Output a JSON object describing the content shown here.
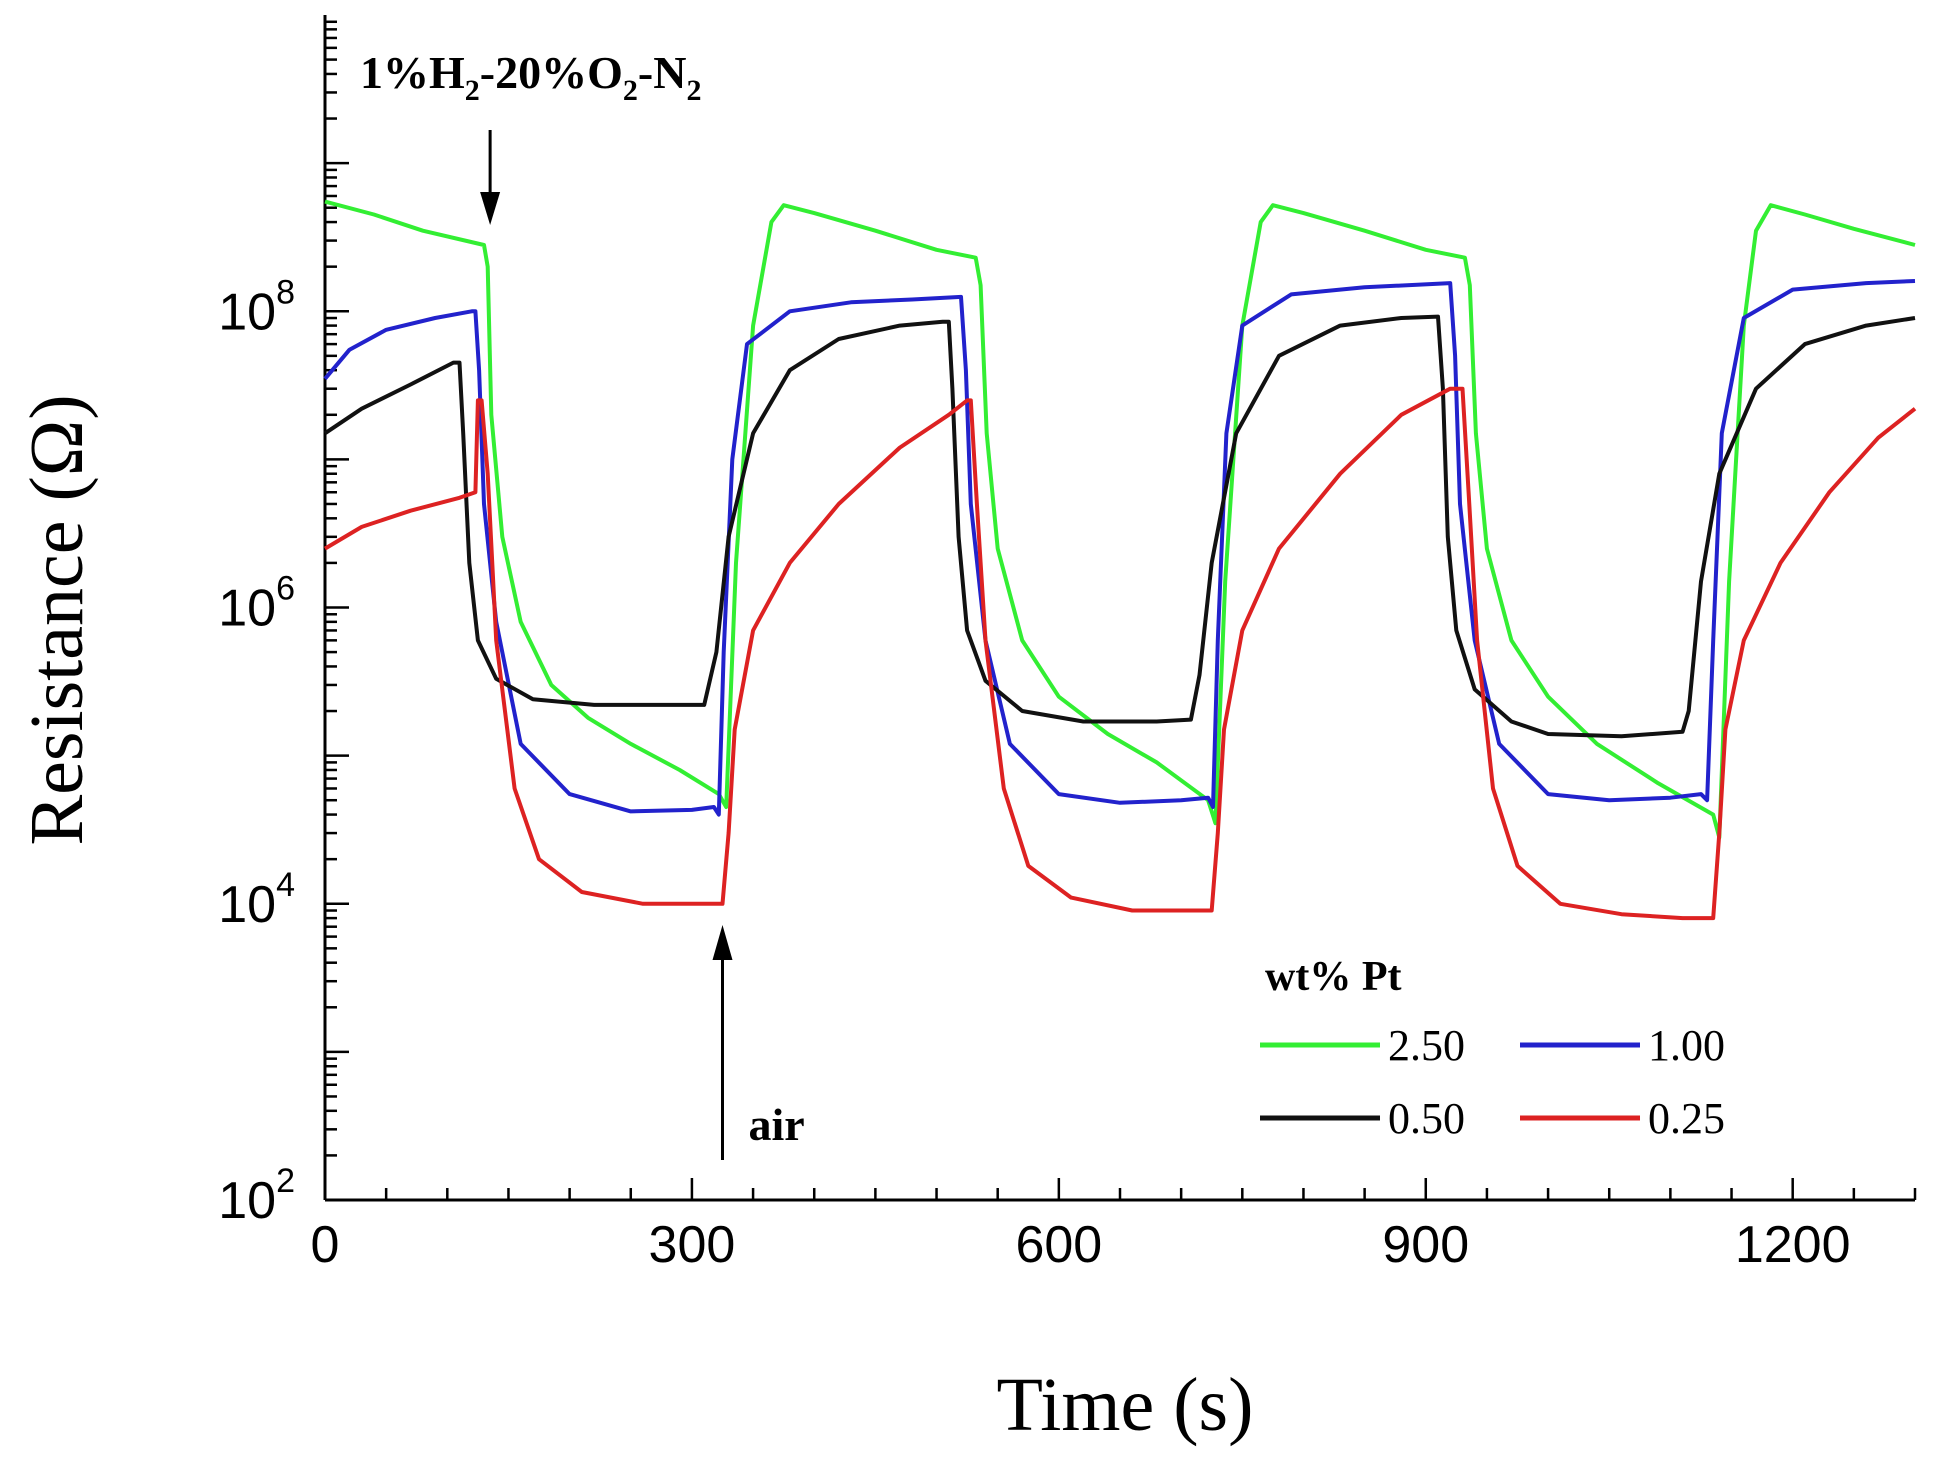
{
  "chart_data": {
    "type": "line",
    "title": "",
    "xlabel": "Time (s)",
    "ylabel": "Resistance (Ω)",
    "xlim": [
      0,
      1300
    ],
    "ylim": [
      100,
      10000000000
    ],
    "yscale": "log",
    "xticks": [
      0,
      300,
      600,
      900,
      1200
    ],
    "xtick_labels": [
      "0",
      "300",
      "600",
      "900",
      "1200"
    ],
    "yticks": [
      100,
      10000,
      1000000,
      100000000
    ],
    "ytick_labels": [
      {
        "base": "10",
        "exp": "2"
      },
      {
        "base": "10",
        "exp": "4"
      },
      {
        "base": "10",
        "exp": "6"
      },
      {
        "base": "10",
        "exp": "8"
      }
    ],
    "legend": {
      "title": "wt% Pt",
      "placement": "bottom-right"
    },
    "annotations": {
      "gas": {
        "parts": [
          "1%H",
          "2",
          "-20%O",
          "2",
          "-N",
          "2"
        ],
        "x": 135
      },
      "air": {
        "text": "air",
        "x": 325
      }
    },
    "series": [
      {
        "name": "2.50",
        "color": "#33ee33",
        "points": [
          [
            0,
            550000000
          ],
          [
            40,
            450000000
          ],
          [
            80,
            350000000
          ],
          [
            130,
            280000000
          ],
          [
            133,
            200000000
          ],
          [
            136,
            20000000
          ],
          [
            145,
            3000000
          ],
          [
            160,
            800000
          ],
          [
            185,
            300000
          ],
          [
            215,
            180000
          ],
          [
            250,
            120000
          ],
          [
            290,
            80000
          ],
          [
            322,
            55000
          ],
          [
            328,
            45000
          ],
          [
            336,
            2000000
          ],
          [
            350,
            80000000
          ],
          [
            365,
            400000000
          ],
          [
            375,
            520000000
          ],
          [
            400,
            460000000
          ],
          [
            450,
            350000000
          ],
          [
            500,
            260000000
          ],
          [
            532,
            230000000
          ],
          [
            536,
            150000000
          ],
          [
            541,
            15000000
          ],
          [
            550,
            2500000
          ],
          [
            570,
            600000
          ],
          [
            600,
            250000
          ],
          [
            640,
            140000
          ],
          [
            680,
            90000
          ],
          [
            722,
            50000
          ],
          [
            728,
            35000
          ],
          [
            736,
            1500000
          ],
          [
            750,
            80000000
          ],
          [
            765,
            400000000
          ],
          [
            775,
            520000000
          ],
          [
            800,
            460000000
          ],
          [
            850,
            350000000
          ],
          [
            900,
            260000000
          ],
          [
            932,
            230000000
          ],
          [
            936,
            150000000
          ],
          [
            941,
            15000000
          ],
          [
            950,
            2500000
          ],
          [
            970,
            600000
          ],
          [
            1000,
            250000
          ],
          [
            1040,
            120000
          ],
          [
            1090,
            65000
          ],
          [
            1135,
            40000
          ],
          [
            1140,
            28000
          ],
          [
            1148,
            1500000
          ],
          [
            1160,
            80000000
          ],
          [
            1170,
            350000000
          ],
          [
            1182,
            520000000
          ],
          [
            1210,
            450000000
          ],
          [
            1250,
            360000000
          ],
          [
            1300,
            280000000
          ]
        ]
      },
      {
        "name": "1.00",
        "color": "#2222cc",
        "points": [
          [
            0,
            35000000
          ],
          [
            20,
            55000000
          ],
          [
            50,
            75000000
          ],
          [
            90,
            90000000
          ],
          [
            120,
            100000000
          ],
          [
            123,
            100000000
          ],
          [
            126,
            40000000
          ],
          [
            130,
            5000000
          ],
          [
            140,
            800000
          ],
          [
            160,
            120000
          ],
          [
            200,
            55000
          ],
          [
            250,
            42000
          ],
          [
            300,
            43000
          ],
          [
            318,
            45000
          ],
          [
            322,
            40000
          ],
          [
            326,
            500000
          ],
          [
            333,
            10000000
          ],
          [
            345,
            60000000
          ],
          [
            380,
            100000000
          ],
          [
            430,
            115000000
          ],
          [
            480,
            120000000
          ],
          [
            520,
            125000000
          ],
          [
            524,
            40000000
          ],
          [
            528,
            5000000
          ],
          [
            540,
            600000
          ],
          [
            560,
            120000
          ],
          [
            600,
            55000
          ],
          [
            650,
            48000
          ],
          [
            700,
            50000
          ],
          [
            722,
            52000
          ],
          [
            726,
            45000
          ],
          [
            730,
            600000
          ],
          [
            737,
            15000000
          ],
          [
            750,
            80000000
          ],
          [
            790,
            130000000
          ],
          [
            850,
            145000000
          ],
          [
            920,
            155000000
          ],
          [
            924,
            50000000
          ],
          [
            928,
            5000000
          ],
          [
            940,
            600000
          ],
          [
            960,
            120000
          ],
          [
            1000,
            55000
          ],
          [
            1050,
            50000
          ],
          [
            1100,
            52000
          ],
          [
            1125,
            55000
          ],
          [
            1130,
            50000
          ],
          [
            1135,
            600000
          ],
          [
            1142,
            15000000
          ],
          [
            1160,
            90000000
          ],
          [
            1200,
            140000000
          ],
          [
            1260,
            155000000
          ],
          [
            1300,
            160000000
          ]
        ]
      },
      {
        "name": "0.50",
        "color": "#111111",
        "points": [
          [
            0,
            15000000
          ],
          [
            30,
            22000000
          ],
          [
            70,
            32000000
          ],
          [
            105,
            45000000
          ],
          [
            110,
            45000000
          ],
          [
            113,
            15000000
          ],
          [
            118,
            2000000
          ],
          [
            125,
            600000
          ],
          [
            140,
            330000
          ],
          [
            170,
            240000
          ],
          [
            220,
            220000
          ],
          [
            290,
            220000
          ],
          [
            310,
            220000
          ],
          [
            320,
            500000
          ],
          [
            330,
            3000000
          ],
          [
            350,
            15000000
          ],
          [
            380,
            40000000
          ],
          [
            420,
            65000000
          ],
          [
            470,
            80000000
          ],
          [
            505,
            85000000
          ],
          [
            510,
            85000000
          ],
          [
            513,
            30000000
          ],
          [
            518,
            3000000
          ],
          [
            525,
            700000
          ],
          [
            540,
            320000
          ],
          [
            570,
            200000
          ],
          [
            620,
            170000
          ],
          [
            680,
            170000
          ],
          [
            708,
            175000
          ],
          [
            715,
            350000
          ],
          [
            725,
            2000000
          ],
          [
            745,
            15000000
          ],
          [
            780,
            50000000
          ],
          [
            830,
            80000000
          ],
          [
            880,
            90000000
          ],
          [
            910,
            92000000
          ],
          [
            914,
            30000000
          ],
          [
            918,
            3000000
          ],
          [
            925,
            700000
          ],
          [
            940,
            280000
          ],
          [
            970,
            170000
          ],
          [
            1000,
            140000
          ],
          [
            1060,
            135000
          ],
          [
            1110,
            145000
          ],
          [
            1115,
            200000
          ],
          [
            1125,
            1500000
          ],
          [
            1140,
            8000000
          ],
          [
            1170,
            30000000
          ],
          [
            1210,
            60000000
          ],
          [
            1260,
            80000000
          ],
          [
            1300,
            90000000
          ]
        ]
      },
      {
        "name": "0.25",
        "color": "#dd2222",
        "points": [
          [
            0,
            2500000
          ],
          [
            30,
            3500000
          ],
          [
            70,
            4500000
          ],
          [
            110,
            5500000
          ],
          [
            123,
            6000000
          ],
          [
            125,
            25000000
          ],
          [
            128,
            25000000
          ],
          [
            133,
            8000000
          ],
          [
            140,
            600000
          ],
          [
            155,
            60000
          ],
          [
            175,
            20000
          ],
          [
            210,
            12000
          ],
          [
            260,
            10000
          ],
          [
            310,
            10000
          ],
          [
            325,
            10000
          ],
          [
            330,
            30000
          ],
          [
            335,
            150000
          ],
          [
            350,
            700000
          ],
          [
            380,
            2000000
          ],
          [
            420,
            5000000
          ],
          [
            470,
            12000000
          ],
          [
            510,
            20000000
          ],
          [
            525,
            25000000
          ],
          [
            528,
            25000000
          ],
          [
            533,
            5000000
          ],
          [
            540,
            600000
          ],
          [
            555,
            60000
          ],
          [
            575,
            18000
          ],
          [
            610,
            11000
          ],
          [
            660,
            9000
          ],
          [
            715,
            9000
          ],
          [
            725,
            9000
          ],
          [
            730,
            30000
          ],
          [
            735,
            150000
          ],
          [
            750,
            700000
          ],
          [
            780,
            2500000
          ],
          [
            830,
            8000000
          ],
          [
            880,
            20000000
          ],
          [
            920,
            30000000
          ],
          [
            930,
            30000000
          ],
          [
            935,
            6000000
          ],
          [
            942,
            600000
          ],
          [
            955,
            60000
          ],
          [
            975,
            18000
          ],
          [
            1010,
            10000
          ],
          [
            1060,
            8500
          ],
          [
            1110,
            8000
          ],
          [
            1135,
            8000
          ],
          [
            1140,
            30000
          ],
          [
            1145,
            150000
          ],
          [
            1160,
            600000
          ],
          [
            1190,
            2000000
          ],
          [
            1230,
            6000000
          ],
          [
            1270,
            14000000
          ],
          [
            1300,
            22000000
          ]
        ]
      }
    ]
  }
}
